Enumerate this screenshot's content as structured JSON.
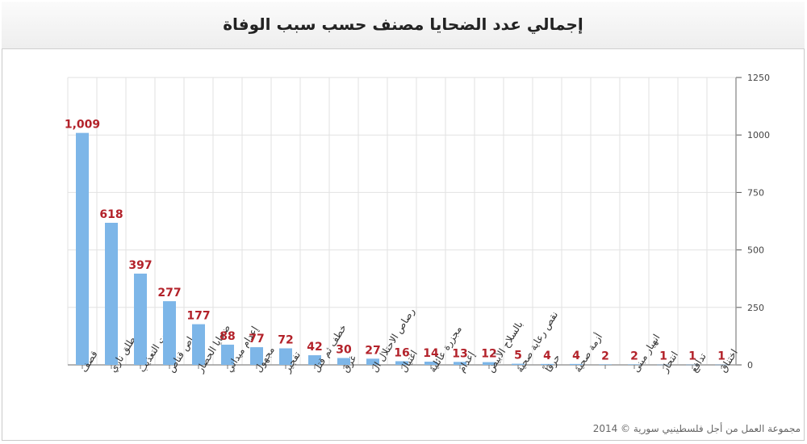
{
  "title": "إجمالي عدد الضحايا مصنف حسب سبب الوفاة",
  "credit": "مجموعة العمل من أجل فلسطينيي سورية © 2014",
  "colors": {
    "bar": "#7db6e8",
    "label": "#b3222a",
    "grid": "#e2e2e2",
    "axis": "#9a9a9a"
  },
  "chart_data": {
    "type": "bar",
    "title": "إجمالي عدد الضحايا مصنف حسب سبب الوفاة",
    "categories": [
      "قصف",
      "طلق ناري",
      "تحت التعذيب",
      "رصاص قناص",
      "ضحايا الحصار",
      "إعدام ميداني",
      "مجهول",
      "تفجير",
      "خطف ثم قتل",
      "غرق",
      "رصاص الاحتلال ال",
      "اغتيال",
      "مجزرة عائلية",
      "إعدام",
      "بالسلاح الأبيض",
      "نقص رعاية صحية",
      "حرقاً",
      "أزمة صحية",
      "",
      "انهيار مبنى",
      "انتحار",
      "تدافع",
      "اختناق"
    ],
    "values": [
      1009,
      618,
      397,
      277,
      177,
      88,
      77,
      72,
      42,
      30,
      27,
      16,
      14,
      13,
      12,
      5,
      4,
      4,
      2,
      2,
      1,
      1,
      1
    ],
    "value_labels": [
      "1,009",
      "618",
      "397",
      "277",
      "177",
      "88",
      "77",
      "72",
      "42",
      "30",
      "27",
      "16",
      "14",
      "13",
      "12",
      "5",
      "4",
      "4",
      "2",
      "2",
      "1",
      "1",
      "1"
    ],
    "y_ticks": [
      0,
      250,
      500,
      750,
      1000,
      1250
    ],
    "ylim": [
      0,
      1250
    ],
    "y_axis_side": "right",
    "grid": true,
    "xlabel": "",
    "ylabel": ""
  }
}
